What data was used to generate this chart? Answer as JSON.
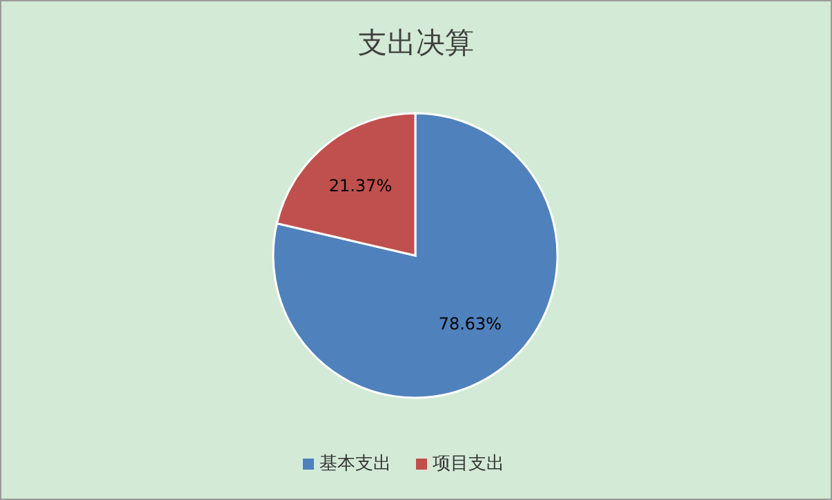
{
  "chart_data": {
    "type": "pie",
    "title": "支出决算",
    "categories": [
      "基本支出",
      "项目支出"
    ],
    "values": [
      78.63,
      21.37
    ],
    "colors": [
      "#4f81bd",
      "#c0504d"
    ],
    "value_labels": [
      "78.63%",
      "21.37%"
    ],
    "legend": "bottom"
  }
}
